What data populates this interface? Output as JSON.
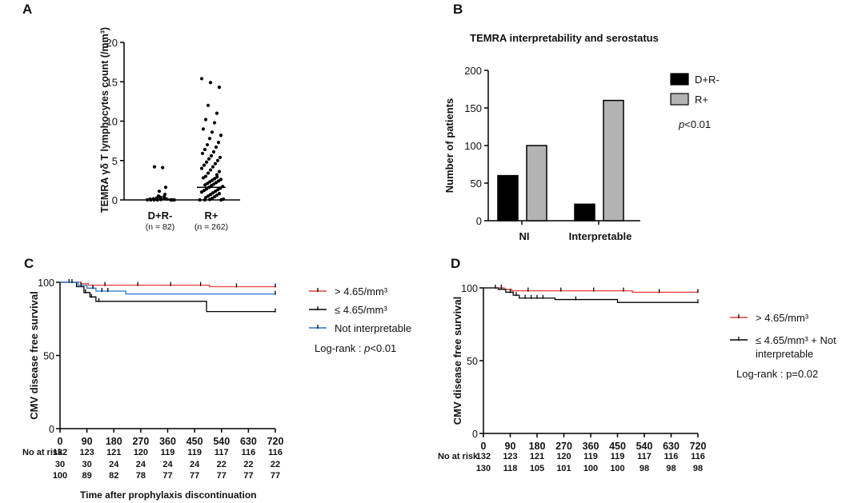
{
  "chart_data": [
    {
      "panel": "A",
      "type": "scatter",
      "title": "",
      "ylabel": "TEMRA γδ T lymphocytes count (/mm³)",
      "ylim": [
        0,
        20
      ],
      "yticks": [
        "0",
        "5",
        "10",
        "15",
        "20"
      ],
      "groups": [
        {
          "name": "D+R-",
          "n_label": "(n = 82)",
          "median": 0.1,
          "values": [
            4.2,
            4.1,
            1.6,
            1.1,
            0.7,
            0.5,
            0.4,
            0.35,
            0.3,
            0.25,
            0.2,
            0.15,
            0.1,
            0.1,
            0.05,
            0.05,
            0,
            0,
            0,
            0,
            0,
            0,
            0
          ]
        },
        {
          "name": "R+",
          "n_label": "(n = 262)",
          "median": 1.6,
          "values": [
            15.4,
            14.9,
            14.3,
            12.0,
            11.0,
            10.2,
            9.8,
            9.0,
            8.6,
            8.2,
            7.8,
            7.3,
            7.0,
            6.7,
            6.4,
            6.1,
            5.9,
            5.6,
            5.4,
            5.2,
            5.0,
            4.8,
            4.6,
            4.4,
            4.2,
            4.0,
            3.8,
            3.6,
            3.4,
            3.2,
            3.0,
            2.9,
            2.8,
            2.7,
            2.6,
            2.5,
            2.4,
            2.3,
            2.2,
            2.1,
            2.0,
            1.9,
            1.8,
            1.7,
            1.6,
            1.5,
            1.4,
            1.3,
            1.2,
            1.1,
            1.0,
            0.9,
            0.8,
            0.7,
            0.6,
            0.5,
            0.4,
            0.3,
            0.2,
            0.1,
            0.05,
            0,
            0,
            0,
            0
          ]
        }
      ]
    },
    {
      "panel": "B",
      "type": "bar",
      "title": "TEMRA interpretability and serostatus",
      "ylabel": "Number of patients",
      "ylim": [
        0,
        200
      ],
      "yticks": [
        "0",
        "50",
        "100",
        "150",
        "200"
      ],
      "categories": [
        "NI",
        "Interpretable"
      ],
      "series": [
        {
          "name": "D+R-",
          "color": "#000000",
          "values": [
            60,
            22
          ]
        },
        {
          "name": "R+",
          "color": "#b3b3b3",
          "values": [
            100,
            160
          ]
        }
      ],
      "annotation_italic": "p",
      "annotation_rest": "<0.01"
    },
    {
      "panel": "C",
      "type": "line",
      "ylabel": "CMV disease free survival",
      "xlabel": "Time after prophylaxis discontinuation",
      "xlim": [
        0,
        720
      ],
      "ylim": [
        0,
        100
      ],
      "xticks": [
        "0",
        "90",
        "180",
        "270",
        "360",
        "450",
        "540",
        "630",
        "720"
      ],
      "yticks": [
        "0",
        "50",
        "100"
      ],
      "series": [
        {
          "name": "> 4.65/mm³",
          "color": "#e8403a",
          "steps": [
            [
              0,
              100
            ],
            [
              70,
              99
            ],
            [
              95,
              98
            ],
            [
              500,
              97
            ],
            [
              720,
              97
            ]
          ],
          "censor": [
            30,
            150,
            260,
            370,
            470,
            590,
            720
          ]
        },
        {
          "name": "≤ 4.65/mm³",
          "color": "#000000",
          "steps": [
            [
              0,
              100
            ],
            [
              55,
              97
            ],
            [
              80,
              93
            ],
            [
              100,
              90
            ],
            [
              120,
              87
            ],
            [
              490,
              80
            ],
            [
              720,
              80
            ]
          ],
          "censor": [
            85,
            105,
            130,
            720
          ]
        },
        {
          "name": "Not interpretable",
          "color": "#1f78d1",
          "steps": [
            [
              0,
              100
            ],
            [
              60,
              98
            ],
            [
              90,
              96
            ],
            [
              120,
              94
            ],
            [
              220,
              92
            ],
            [
              720,
              92
            ]
          ],
          "censor": [
            40,
            70,
            110,
            140,
            160,
            720
          ]
        }
      ],
      "risk_table": {
        "label": "No at risk",
        "rows": [
          {
            "color": "#e8403a",
            "values": [
              "132",
              "123",
              "121",
              "120",
              "119",
              "119",
              "117",
              "116",
              "116"
            ]
          },
          {
            "color": "#000000",
            "values": [
              "30",
              "30",
              "24",
              "24",
              "24",
              "24",
              "22",
              "22",
              "22"
            ]
          },
          {
            "color": "#1f78d1",
            "values": [
              "100",
              "89",
              "82",
              "78",
              "77",
              "77",
              "77",
              "77",
              "77"
            ]
          }
        ]
      },
      "annotation": "Log-rank : ",
      "annotation_italic": "p",
      "annotation_rest": "<0.01"
    },
    {
      "panel": "D",
      "type": "line",
      "ylabel": "CMV disease free survival",
      "xlim": [
        0,
        720
      ],
      "ylim": [
        0,
        100
      ],
      "xticks": [
        "0",
        "90",
        "180",
        "270",
        "360",
        "450",
        "540",
        "630",
        "720"
      ],
      "yticks": [
        "0",
        "50",
        "100"
      ],
      "series": [
        {
          "name": "> 4.65/mm³",
          "color": "#e8403a",
          "steps": [
            [
              0,
              100
            ],
            [
              70,
              99
            ],
            [
              95,
              98
            ],
            [
              500,
              97
            ],
            [
              720,
              97
            ]
          ],
          "censor": [
            40,
            60,
            150,
            260,
            370,
            470,
            590,
            720
          ]
        },
        {
          "name": "≤ 4.65/mm³ + Not",
          "name2": "interpretable",
          "color": "#000000",
          "steps": [
            [
              0,
              100
            ],
            [
              50,
              99
            ],
            [
              75,
              97
            ],
            [
              100,
              95
            ],
            [
              120,
              93
            ],
            [
              240,
              92
            ],
            [
              450,
              90
            ],
            [
              720,
              90
            ]
          ],
          "censor": [
            90,
            110,
            140,
            160,
            180,
            200,
            310,
            720
          ]
        }
      ],
      "risk_table": {
        "label": "No at risk",
        "rows": [
          {
            "color": "#e8403a",
            "values": [
              "132",
              "123",
              "121",
              "120",
              "119",
              "119",
              "117",
              "116",
              "116"
            ]
          },
          {
            "color": "#000000",
            "values": [
              "130",
              "118",
              "105",
              "101",
              "100",
              "100",
              "98",
              "98",
              "98"
            ]
          }
        ]
      },
      "annotation": "Log-rank : p=0.02"
    }
  ],
  "panel_letters": [
    "A",
    "B",
    "C",
    "D"
  ]
}
